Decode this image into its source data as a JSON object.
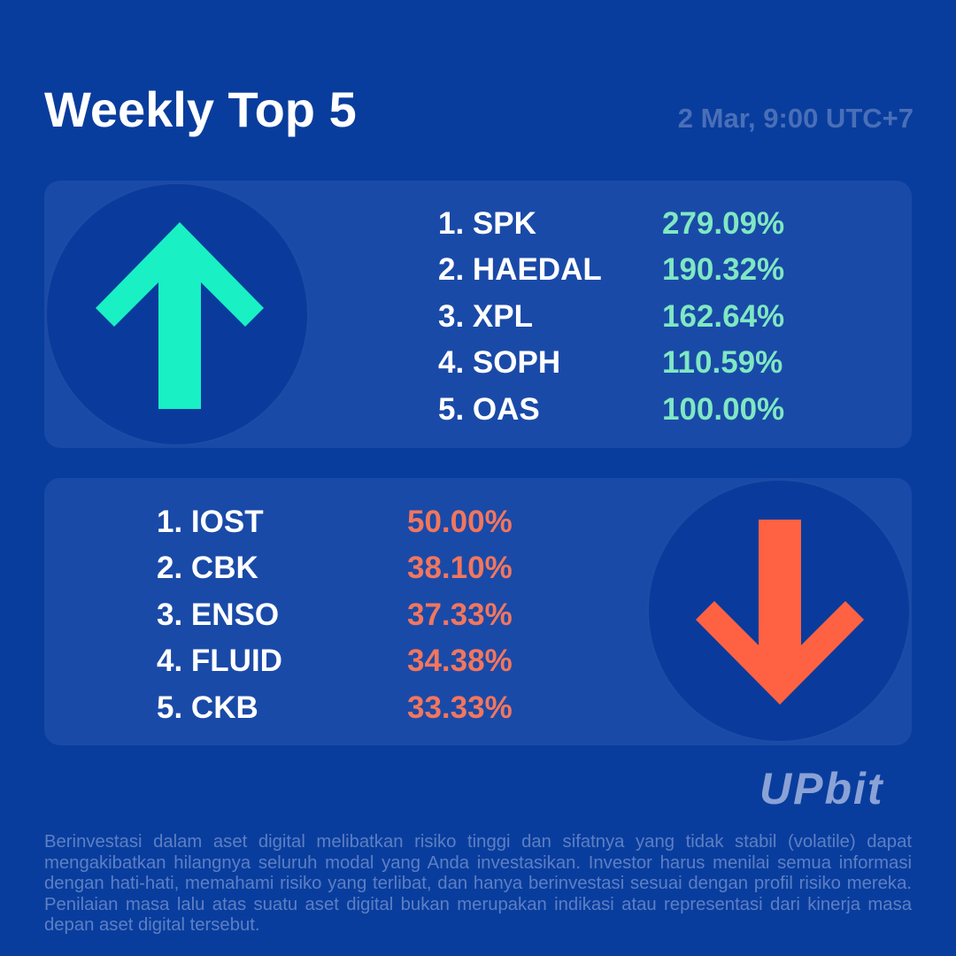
{
  "header": {
    "title": "Weekly Top 5",
    "timestamp": "2 Mar, 9:00 UTC+7"
  },
  "gainers": {
    "icon": "arrow-up-icon",
    "color": "#19f0c3",
    "items": [
      {
        "name": "1. SPK",
        "change": "279.09%"
      },
      {
        "name": "2. HAEDAL",
        "change": "190.32%"
      },
      {
        "name": "3. XPL",
        "change": "162.64%"
      },
      {
        "name": "4. SOPH",
        "change": "110.59%"
      },
      {
        "name": "5. OAS",
        "change": "100.00%"
      }
    ]
  },
  "losers": {
    "icon": "arrow-down-icon",
    "color": "#ff6242",
    "items": [
      {
        "name": "1. IOST",
        "change": "50.00%"
      },
      {
        "name": "2. CBK",
        "change": "38.10%"
      },
      {
        "name": "3. ENSO",
        "change": "37.33%"
      },
      {
        "name": "4. FLUID",
        "change": "34.38%"
      },
      {
        "name": "5. CKB",
        "change": "33.33%"
      }
    ]
  },
  "brand": {
    "logo": "UPbit"
  },
  "footer": {
    "disclaimer": "Berinvestasi dalam aset digital melibatkan risiko tinggi dan sifatnya yang tidak stabil (volatile) dapat mengakibatkan hilangnya seluruh modal yang Anda investasikan. Investor harus menilai semua informasi dengan hati-hati, memahami risiko yang terlibat, dan hanya berinvestasi sesuai dengan profil risiko mereka. Penilaian masa lalu atas suatu aset digital bukan merupakan indikasi atau representasi dari kinerja masa depan aset digital tersebut."
  },
  "colors": {
    "background": "#093d9d",
    "panel": "#1a4aa8",
    "gain_text": "#7fe8c2",
    "loss_text": "#f2765e"
  }
}
